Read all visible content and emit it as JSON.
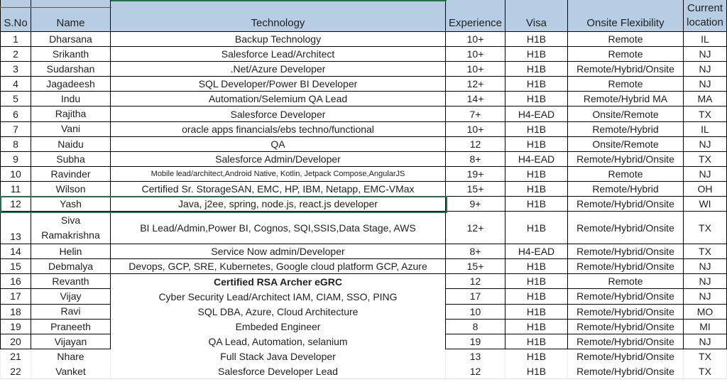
{
  "table": {
    "header": {
      "sno": "S.No",
      "name": "Name",
      "tech": "Technology",
      "exp": "Experience",
      "visa": "Visa",
      "onsite": "Onsite Flexibility",
      "loc": "Current location"
    },
    "rows": [
      {
        "sno": "1",
        "name": "Dharsana",
        "tech": "Backup Technology",
        "exp": "10+",
        "visa": "H1B",
        "onsite": "Remote",
        "loc": "IL"
      },
      {
        "sno": "2",
        "name": "Srikanth",
        "tech": "Salesforce Lead/Architect",
        "exp": "10+",
        "visa": "H1B",
        "onsite": "Remote",
        "loc": "NJ"
      },
      {
        "sno": "3",
        "name": "Sudarshan",
        "tech": ".Net/Azure Developer",
        "exp": "10+",
        "visa": "H1B",
        "onsite": "Remote/Hybrid/Onsite",
        "loc": "NJ"
      },
      {
        "sno": "4",
        "name": "Jagadeesh",
        "tech": "SQL Developer/Power BI Developer",
        "exp": "12+",
        "visa": "H1B",
        "onsite": "Remote",
        "loc": "NJ"
      },
      {
        "sno": "5",
        "name": "Indu",
        "tech": "Automation/Selemium QA Lead",
        "exp": "14+",
        "visa": "H1B",
        "onsite": "Remote/Hybrid MA",
        "loc": "MA"
      },
      {
        "sno": "6",
        "name": "Rajitha",
        "tech": "Salesforce Developer",
        "exp": "7+",
        "visa": "H4-EAD",
        "onsite": "Onsite/Remote",
        "loc": "TX"
      },
      {
        "sno": "7",
        "name": "Vani",
        "tech": "oracle apps financials/ebs techno/functional",
        "exp": "10+",
        "visa": "H1B",
        "onsite": "Remote/Hybrid",
        "loc": "IL"
      },
      {
        "sno": "8",
        "name": "Naidu",
        "tech": "QA",
        "exp": "12",
        "visa": "H1B",
        "onsite": "Onsite/Remote",
        "loc": "NJ"
      },
      {
        "sno": "9",
        "name": "Subha",
        "tech": "Salesforce Admin/Developer",
        "exp": "8+",
        "visa": "H4-EAD",
        "onsite": "Remote/Hybrid/Onsite",
        "loc": "TX"
      },
      {
        "sno": "10",
        "name": "Ravinder",
        "tech": "Mobile lead/architect,Android Native, Kotlin, Jetpack Compose,AngularJS",
        "exp": "19+",
        "visa": "H1B",
        "onsite": "Remote",
        "loc": "NJ"
      },
      {
        "sno": "11",
        "name": "Wilson",
        "tech": "Certified Sr. StorageSAN, EMC, HP, IBM, Netapp, EMC-VMax",
        "exp": "15+",
        "visa": "H1B",
        "onsite": "Remote/Hybrid",
        "loc": "OH"
      },
      {
        "sno": "12",
        "name": "Yash",
        "tech": "Java, j2ee, spring, node.js, react.js developer",
        "exp": "9+",
        "visa": "H1B",
        "onsite": "Remote/Hybrid/Onsite",
        "loc": "WI"
      },
      {
        "sno": "13",
        "name": "Siva Ramakrishna",
        "tech": "BI Lead/Admin,Power BI, Cognos, SQI,SSIS,Data Stage, AWS",
        "exp": "12+",
        "visa": "H1B",
        "onsite": "Remote/Hybrid/Onsite",
        "loc": "TX"
      },
      {
        "sno": "14",
        "name": "Helin",
        "tech": "Service Now admin/Developer",
        "exp": "8+",
        "visa": "H4-EAD",
        "onsite": "Remote/Hybrid/Onsite",
        "loc": "TX"
      },
      {
        "sno": "15",
        "name": "Debmalya",
        "tech": "Devops, GCP, SRE, Kubernetes, Google cloud platform GCP, Azure",
        "exp": "15+",
        "visa": "H1B",
        "onsite": "Remote/Hybrid/Onsite",
        "loc": "NJ"
      },
      {
        "sno": "16",
        "name": "Revanth",
        "tech": "Certified RSA Archer eGRC",
        "exp": "12",
        "visa": "H1B",
        "onsite": "Remote",
        "loc": "NJ"
      },
      {
        "sno": "17",
        "name": "Vijay",
        "tech": "Cyber Security Lead/Architect IAM, CIAM, SSO, PING",
        "exp": "17",
        "visa": "H1B",
        "onsite": "Remote/Hybrid/Onsite",
        "loc": "NJ"
      },
      {
        "sno": "18",
        "name": "Ravi",
        "tech": "SQL DBA, Azure, Cloud Architecture",
        "exp": "10",
        "visa": "H1B",
        "onsite": "Remote/Hybrid/Onsite",
        "loc": "MO"
      },
      {
        "sno": "19",
        "name": "Praneeth",
        "tech": "Embeded Engineer",
        "exp": "8",
        "visa": "H1B",
        "onsite": "Remote/Hybrid/Onsite",
        "loc": "MI"
      },
      {
        "sno": "20",
        "name": "Vijayan",
        "tech": "QA Lead, Automation, selanium",
        "exp": "19",
        "visa": "H1B",
        "onsite": "Remote/Hybrid/Onsite",
        "loc": "NJ"
      },
      {
        "sno": "21",
        "name": "Nhare",
        "tech": "Full Stack Java Developer",
        "exp": "13",
        "visa": "H1B",
        "onsite": "Remote/Hybrid/Onsite",
        "loc": "TX"
      },
      {
        "sno": "22",
        "name": "Vanket",
        "tech": "Salesforce Developer Lead",
        "exp": "12",
        "visa": "H1B",
        "onsite": "Remote/Hybrid/Onsite",
        "loc": "TX"
      }
    ]
  },
  "colors": {
    "header_bg": "#b7cde3",
    "selection_green": "#217346",
    "border_black": "#000000",
    "gridline_gray": "#e3e3e3"
  }
}
